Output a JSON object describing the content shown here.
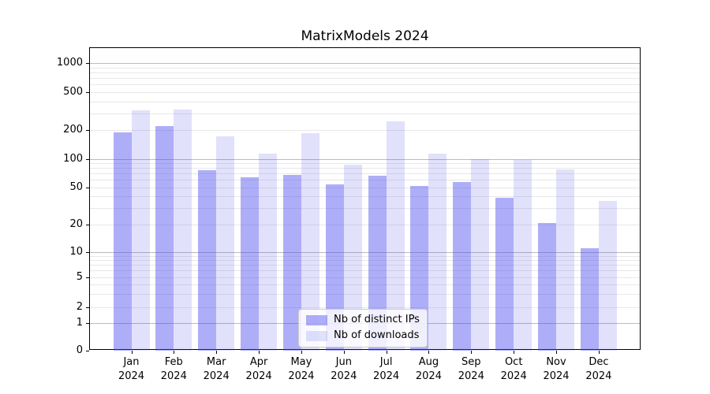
{
  "chart_data": {
    "type": "bar",
    "title": "MatrixModels 2024",
    "xlabel": "",
    "ylabel": "",
    "categories": [
      "Jan",
      "Feb",
      "Mar",
      "Apr",
      "May",
      "Jun",
      "Jul",
      "Aug",
      "Sep",
      "Oct",
      "Nov",
      "Dec"
    ],
    "category_year": "2024",
    "series": [
      {
        "name": "Nb of distinct IPs",
        "color": "rgba(75,75,240,0.45)",
        "values": [
          190,
          220,
          76,
          64,
          68,
          54,
          67,
          52,
          57,
          39,
          21,
          11
        ]
      },
      {
        "name": "Nb of downloads",
        "color": "rgba(75,75,240,0.17)",
        "values": [
          320,
          327,
          172,
          114,
          184,
          86,
          245,
          113,
          100,
          97,
          78,
          36
        ]
      }
    ],
    "yaxis": {
      "scale": "symlog",
      "ylim": [
        0,
        1430
      ],
      "tick_values": [
        0,
        1,
        2,
        5,
        10,
        20,
        50,
        100,
        200,
        500,
        1000
      ],
      "tick_labels": [
        "0",
        "1",
        "2",
        "5",
        "10",
        "20",
        "50",
        "100",
        "200",
        "500",
        "1000"
      ],
      "major_gridline_values": [
        1,
        10,
        100,
        1000
      ],
      "minor_gridline_values": [
        2,
        3,
        4,
        5,
        6,
        7,
        8,
        9,
        20,
        30,
        40,
        50,
        60,
        70,
        80,
        90,
        200,
        300,
        400,
        500,
        600,
        700,
        800,
        900
      ]
    },
    "grid": true,
    "legend_position": "lower center"
  },
  "colors": {
    "background": "#ffffff",
    "spine": "#000000",
    "major_grid": "#bbbbbb",
    "minor_grid": "#e8e8e8",
    "bar_distinct_ips": "#aeaef4",
    "bar_downloads": "#dedef9"
  }
}
